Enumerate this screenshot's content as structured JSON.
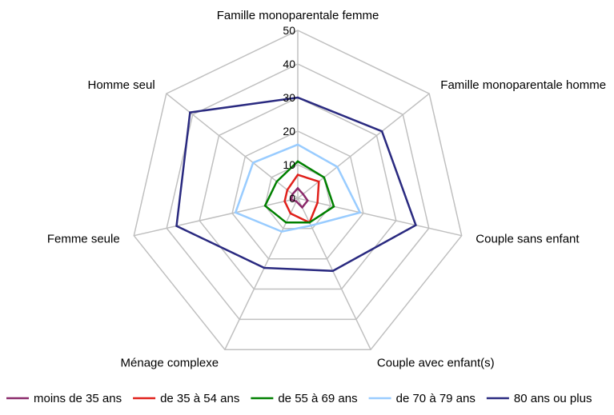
{
  "chart_data": {
    "type": "radar",
    "title": "",
    "categories": [
      "Famille monoparentale femme",
      "Famille monoparentale homme",
      "Couple sans enfant",
      "Couple avec enfant(s)",
      "Ménage complexe",
      "Femme seule",
      "Homme seul"
    ],
    "rlim": [
      0,
      50
    ],
    "ticks": [
      "0",
      "10",
      "20",
      "30",
      "40",
      "50"
    ],
    "grid": true,
    "legend_position": "bottom",
    "series": [
      {
        "name": "moins de 35 ans",
        "color": "#8b2a6b",
        "values": [
          3,
          2,
          3,
          3,
          1,
          2,
          2
        ]
      },
      {
        "name": "de 35 à 54 ans",
        "color": "#e0201b",
        "values": [
          7,
          8,
          6,
          8,
          5,
          4,
          4
        ]
      },
      {
        "name": "de 55 à 69 ans",
        "color": "#008000",
        "values": [
          11,
          10,
          11,
          8,
          8,
          10,
          8
        ]
      },
      {
        "name": "de 70 à 79 ans",
        "color": "#99ccff",
        "values": [
          16,
          15,
          19,
          9,
          11,
          19,
          17
        ]
      },
      {
        "name": "80 ans ou plus",
        "color": "#2a2a80",
        "values": [
          30,
          32,
          36,
          24,
          23,
          37,
          41
        ]
      }
    ]
  }
}
